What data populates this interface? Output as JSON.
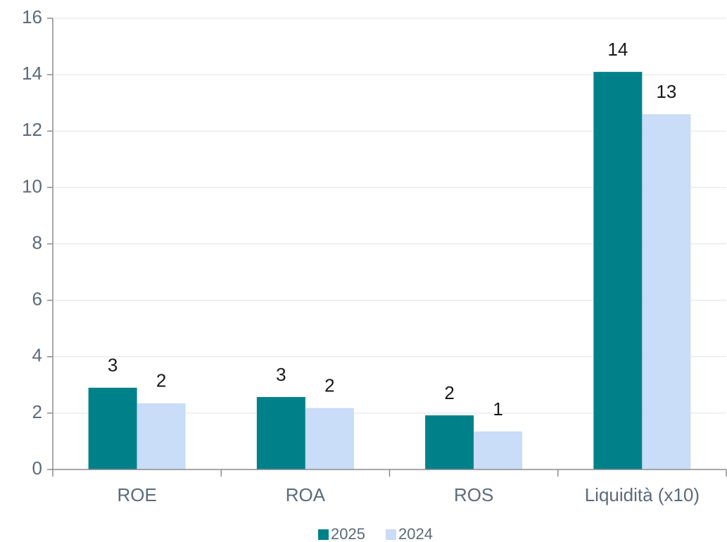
{
  "chart_data": {
    "type": "bar",
    "categories": [
      "ROE",
      "ROA",
      "ROS",
      "Liquidità (x10)"
    ],
    "series": [
      {
        "name": "2025",
        "color": "#00818a",
        "values": [
          2.9,
          2.57,
          1.92,
          14.1
        ],
        "value_labels": [
          "3",
          "3",
          "2",
          "14"
        ]
      },
      {
        "name": "2024",
        "color": "#c9dcf8",
        "values": [
          2.35,
          2.18,
          1.35,
          12.6
        ],
        "value_labels": [
          "2",
          "2",
          "1",
          "13"
        ]
      }
    ],
    "ylim": [
      0,
      16
    ],
    "yticks": [
      0,
      2,
      4,
      6,
      8,
      10,
      12,
      14,
      16
    ],
    "grid": true,
    "legend": "bottom"
  }
}
